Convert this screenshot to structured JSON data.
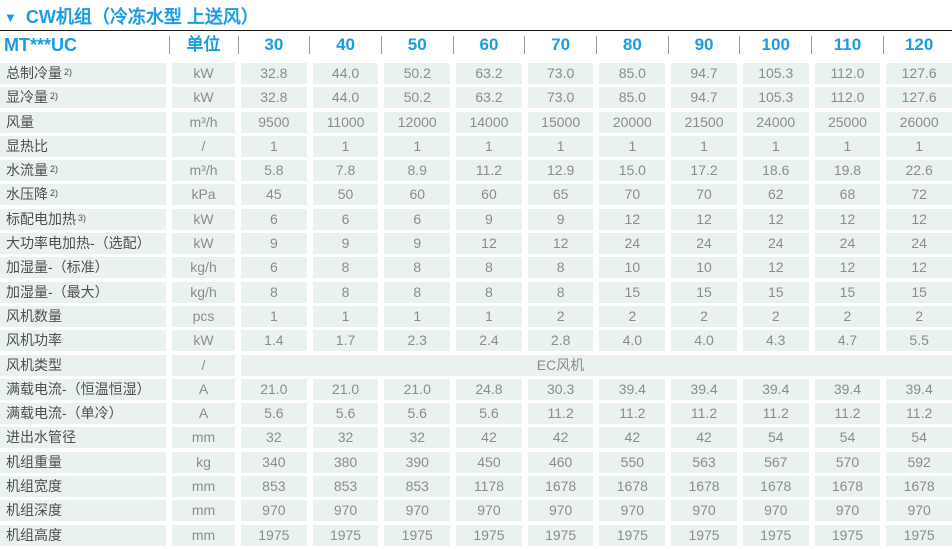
{
  "title": "CW机组（冷冻水型 上送风）",
  "triangle_icon": "▼",
  "colors": {
    "accent_blue": "#1B9CE0",
    "cell_background": "#E9F1F1",
    "label_text": "#4F4F4F",
    "value_text": "#8C8C8C",
    "top_rule": "#1A1A1A",
    "header_separator": "#9B9B9B"
  },
  "header": {
    "model_label": "MT***UC",
    "unit_label": "单位",
    "columns": [
      "30",
      "40",
      "50",
      "60",
      "70",
      "80",
      "90",
      "100",
      "110",
      "120"
    ]
  },
  "rows": [
    {
      "label": "总制冷量",
      "sup": "2)",
      "unit": "kW",
      "values": [
        "32.8",
        "44.0",
        "50.2",
        "63.2",
        "73.0",
        "85.0",
        "94.7",
        "105.3",
        "112.0",
        "127.6"
      ]
    },
    {
      "label": "显冷量",
      "sup": "2)",
      "unit": "kW",
      "values": [
        "32.8",
        "44.0",
        "50.2",
        "63.2",
        "73.0",
        "85.0",
        "94.7",
        "105.3",
        "112.0",
        "127.6"
      ]
    },
    {
      "label": "风量",
      "unit": "m³/h",
      "values": [
        "9500",
        "11000",
        "12000",
        "14000",
        "15000",
        "20000",
        "21500",
        "24000",
        "25000",
        "26000"
      ]
    },
    {
      "label": "显热比",
      "unit": "/",
      "values": [
        "1",
        "1",
        "1",
        "1",
        "1",
        "1",
        "1",
        "1",
        "1",
        "1"
      ]
    },
    {
      "label": "水流量",
      "sup": "2)",
      "unit": "m³/h",
      "values": [
        "5.8",
        "7.8",
        "8.9",
        "11.2",
        "12.9",
        "15.0",
        "17.2",
        "18.6",
        "19.8",
        "22.6"
      ]
    },
    {
      "label": "水压降",
      "sup": "2)",
      "unit": "kPa",
      "values": [
        "45",
        "50",
        "60",
        "60",
        "65",
        "70",
        "70",
        "62",
        "68",
        "72"
      ]
    },
    {
      "label": "标配电加热",
      "sup": "3)",
      "unit": "kW",
      "values": [
        "6",
        "6",
        "6",
        "9",
        "9",
        "12",
        "12",
        "12",
        "12",
        "12"
      ]
    },
    {
      "label": "大功率电加热-（选配）",
      "unit": "kW",
      "values": [
        "9",
        "9",
        "9",
        "12",
        "12",
        "24",
        "24",
        "24",
        "24",
        "24"
      ]
    },
    {
      "label": "加湿量-（标准）",
      "unit": "kg/h",
      "values": [
        "6",
        "8",
        "8",
        "8",
        "8",
        "10",
        "10",
        "12",
        "12",
        "12"
      ]
    },
    {
      "label": "加湿量-（最大）",
      "unit": "kg/h",
      "values": [
        "8",
        "8",
        "8",
        "8",
        "8",
        "15",
        "15",
        "15",
        "15",
        "15"
      ]
    },
    {
      "label": "风机数量",
      "unit": "pcs",
      "values": [
        "1",
        "1",
        "1",
        "1",
        "2",
        "2",
        "2",
        "2",
        "2",
        "2"
      ]
    },
    {
      "label": "风机功率",
      "unit": "kW",
      "values": [
        "1.4",
        "1.7",
        "2.3",
        "2.4",
        "2.8",
        "4.0",
        "4.0",
        "4.3",
        "4.7",
        "5.5"
      ]
    },
    {
      "label": "风机类型",
      "unit": "/",
      "merged_value": "EC风机"
    },
    {
      "label": "满载电流-（恒温恒湿）",
      "unit": "A",
      "values": [
        "21.0",
        "21.0",
        "21.0",
        "24.8",
        "30.3",
        "39.4",
        "39.4",
        "39.4",
        "39.4",
        "39.4"
      ]
    },
    {
      "label": "满载电流-（单冷）",
      "unit": "A",
      "values": [
        "5.6",
        "5.6",
        "5.6",
        "5.6",
        "11.2",
        "11.2",
        "11.2",
        "11.2",
        "11.2",
        "11.2"
      ]
    },
    {
      "label": "进出水管径",
      "unit": "mm",
      "values": [
        "32",
        "32",
        "32",
        "42",
        "42",
        "42",
        "42",
        "54",
        "54",
        "54"
      ]
    },
    {
      "label": "机组重量",
      "unit": "kg",
      "values": [
        "340",
        "380",
        "390",
        "450",
        "460",
        "550",
        "563",
        "567",
        "570",
        "592"
      ]
    },
    {
      "label": "机组宽度",
      "unit": "mm",
      "values": [
        "853",
        "853",
        "853",
        "1178",
        "1678",
        "1678",
        "1678",
        "1678",
        "1678",
        "1678"
      ]
    },
    {
      "label": "机组深度",
      "unit": "mm",
      "values": [
        "970",
        "970",
        "970",
        "970",
        "970",
        "970",
        "970",
        "970",
        "970",
        "970"
      ]
    },
    {
      "label": "机组高度",
      "unit": "mm",
      "values": [
        "1975",
        "1975",
        "1975",
        "1975",
        "1975",
        "1975",
        "1975",
        "1975",
        "1975",
        "1975"
      ]
    }
  ]
}
